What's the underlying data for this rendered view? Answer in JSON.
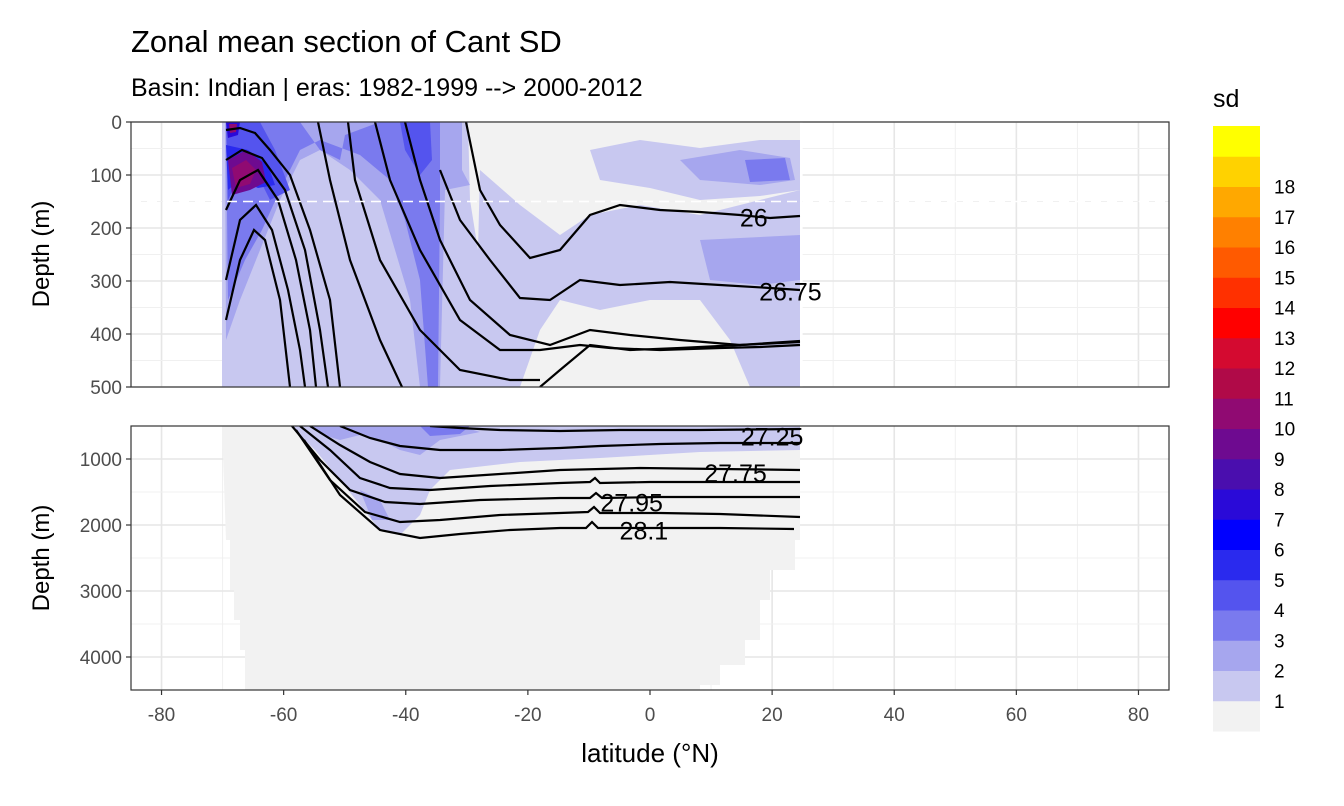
{
  "chart_data": {
    "type": "heatmap",
    "title": "Zonal mean section of Cant SD",
    "subtitle": "Basin: Indian | eras: 1982-1999 --> 2000-2012",
    "xlabel": "latitude (°N)",
    "x_ticks": [
      -80,
      -60,
      -40,
      -20,
      0,
      20,
      40,
      60,
      80
    ],
    "xlim": [
      -85,
      85
    ],
    "panels": [
      {
        "name": "upper",
        "ylabel": "Depth (m)",
        "ylim": [
          0,
          500
        ],
        "y_ticks": [
          0,
          100,
          200,
          300,
          400,
          500
        ],
        "reference_line_depth": 150
      },
      {
        "name": "lower",
        "ylabel": "Depth (m)",
        "ylim": [
          500,
          4500
        ],
        "y_ticks": [
          1000,
          2000,
          3000,
          4000
        ]
      }
    ],
    "legend": {
      "title": "sd",
      "position": "right",
      "levels": [
        "1",
        "2",
        "3",
        "4",
        "5",
        "6",
        "7",
        "8",
        "9",
        "10",
        "11",
        "12",
        "13",
        "14",
        "15",
        "16",
        "17",
        "18"
      ],
      "colors": [
        "#f2f2f2",
        "#c8c8f0",
        "#a6a6ee",
        "#7a7aee",
        "#5454ee",
        "#2a2aee",
        "#0000ff",
        "#2a0ad8",
        "#4a0eae",
        "#6e0a90",
        "#900a72",
        "#b00a48",
        "#d40a30",
        "#ff0000",
        "#ff3000",
        "#ff5a00",
        "#ff8000",
        "#ffa800",
        "#ffd200",
        "#ffff00"
      ]
    },
    "contour_labels": [
      {
        "text": "26",
        "lat": 17,
        "depth": 180
      },
      {
        "text": "26.75",
        "lat": 23,
        "depth": 320
      },
      {
        "text": "27.25",
        "lat": 20,
        "depth": 660
      },
      {
        "text": "27.75",
        "lat": 14,
        "depth": 1210
      },
      {
        "text": "27.95",
        "lat": -3,
        "depth": 1660
      },
      {
        "text": "28.1",
        "lat": -1,
        "depth": 2080
      }
    ],
    "data_extent_lat": [
      -70,
      25
    ],
    "grid": true
  }
}
